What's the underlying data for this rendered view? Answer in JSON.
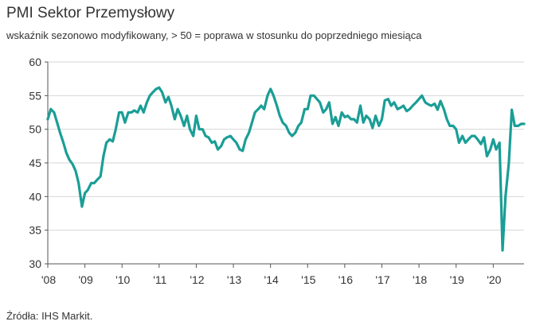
{
  "chart_data": {
    "type": "line",
    "title": "PMI Sektor Przemysłowy",
    "subtitle": "wskaźnik sezonowo modyfikowany, > 50 = poprawa w stosunku do poprzedniego miesiąca",
    "source": "Źródła: IHS Markit.",
    "xlabel": "",
    "ylabel": "",
    "ylim": [
      30,
      60
    ],
    "yticks": [
      30,
      35,
      40,
      45,
      50,
      55,
      60
    ],
    "xlim": [
      2008.0,
      2020.83
    ],
    "xticks": [
      {
        "value": 2008,
        "label": "'08"
      },
      {
        "value": 2009,
        "label": "'09"
      },
      {
        "value": 2010,
        "label": "'10"
      },
      {
        "value": 2011,
        "label": "'11"
      },
      {
        "value": 2012,
        "label": "'12"
      },
      {
        "value": 2013,
        "label": "'13"
      },
      {
        "value": 2014,
        "label": "'14"
      },
      {
        "value": 2015,
        "label": "'15"
      },
      {
        "value": 2016,
        "label": "'16"
      },
      {
        "value": 2017,
        "label": "'17"
      },
      {
        "value": 2018,
        "label": "'18"
      },
      {
        "value": 2019,
        "label": "'19"
      },
      {
        "value": 2020,
        "label": "'20"
      }
    ],
    "grid": "horizontal",
    "line_color": "#1a9e96",
    "grid_color": "#d6d6d6",
    "series": [
      {
        "x": [
          2008.0,
          2008.08,
          2008.17,
          2008.25,
          2008.33,
          2008.42,
          2008.5,
          2008.58,
          2008.67,
          2008.75,
          2008.83,
          2008.92,
          2009.0,
          2009.08,
          2009.17,
          2009.25,
          2009.33,
          2009.42,
          2009.5,
          2009.58,
          2009.67,
          2009.75,
          2009.83,
          2009.92,
          2010.0,
          2010.08,
          2010.17,
          2010.25,
          2010.33,
          2010.42,
          2010.5,
          2010.58,
          2010.67,
          2010.75,
          2010.83,
          2010.92,
          2011.0,
          2011.08,
          2011.17,
          2011.25,
          2011.33,
          2011.42,
          2011.5,
          2011.58,
          2011.67,
          2011.75,
          2011.83,
          2011.92,
          2012.0,
          2012.08,
          2012.17,
          2012.25,
          2012.33,
          2012.42,
          2012.5,
          2012.58,
          2012.67,
          2012.75,
          2012.83,
          2012.92,
          2013.0,
          2013.08,
          2013.17,
          2013.25,
          2013.33,
          2013.42,
          2013.5,
          2013.58,
          2013.67,
          2013.75,
          2013.83,
          2013.92,
          2014.0,
          2014.08,
          2014.17,
          2014.25,
          2014.33,
          2014.42,
          2014.5,
          2014.58,
          2014.67,
          2014.75,
          2014.83,
          2014.92,
          2015.0,
          2015.08,
          2015.17,
          2015.25,
          2015.33,
          2015.42,
          2015.5,
          2015.58,
          2015.67,
          2015.75,
          2015.83,
          2015.92,
          2016.0,
          2016.08,
          2016.17,
          2016.25,
          2016.33,
          2016.42,
          2016.5,
          2016.58,
          2016.67,
          2016.75,
          2016.83,
          2016.92,
          2017.0,
          2017.08,
          2017.17,
          2017.25,
          2017.33,
          2017.42,
          2017.5,
          2017.58,
          2017.67,
          2017.75,
          2017.83,
          2017.92,
          2018.0,
          2018.08,
          2018.17,
          2018.25,
          2018.33,
          2018.42,
          2018.5,
          2018.58,
          2018.67,
          2018.75,
          2018.83,
          2018.92,
          2019.0,
          2019.08,
          2019.17,
          2019.25,
          2019.33,
          2019.42,
          2019.5,
          2019.58,
          2019.67,
          2019.75,
          2019.83,
          2019.92,
          2020.0,
          2020.08,
          2020.17,
          2020.25,
          2020.33,
          2020.42,
          2020.5,
          2020.58,
          2020.67,
          2020.75,
          2020.83
        ],
        "y": [
          51.5,
          53.0,
          52.5,
          51.0,
          49.5,
          48.0,
          46.5,
          45.5,
          44.8,
          43.8,
          42.0,
          38.5,
          40.5,
          41.0,
          42.0,
          42.0,
          42.5,
          43.0,
          46.0,
          48.0,
          48.5,
          48.2,
          50.0,
          52.5,
          52.5,
          51.0,
          52.5,
          52.5,
          52.8,
          52.5,
          53.5,
          52.5,
          54.0,
          55.0,
          55.5,
          56.0,
          56.2,
          55.5,
          54.0,
          54.8,
          53.5,
          51.5,
          53.0,
          52.0,
          50.5,
          52.0,
          50.0,
          49.0,
          52.0,
          50.0,
          50.0,
          49.0,
          48.8,
          48.0,
          48.2,
          47.0,
          47.5,
          48.5,
          48.8,
          49.0,
          48.5,
          48.0,
          47.0,
          46.8,
          48.5,
          49.5,
          51.0,
          52.5,
          53.0,
          53.5,
          53.0,
          55.0,
          56.0,
          55.0,
          53.5,
          52.0,
          51.0,
          50.5,
          49.5,
          49.0,
          49.5,
          50.5,
          51.0,
          53.0,
          53.0,
          55.0,
          55.0,
          54.5,
          54.0,
          52.5,
          53.0,
          54.0,
          50.8,
          51.8,
          50.5,
          52.5,
          51.8,
          52.0,
          51.5,
          51.5,
          51.0,
          53.5,
          51.0,
          52.0,
          51.5,
          50.2,
          52.0,
          50.5,
          51.5,
          54.3,
          54.5,
          53.5,
          54.0,
          53.0,
          53.2,
          53.5,
          52.7,
          53.0,
          53.5,
          54.0,
          54.5,
          55.0,
          54.0,
          53.7,
          53.5,
          53.8,
          52.9,
          54.2,
          53.0,
          51.5,
          50.5,
          50.5,
          50.0,
          48.0,
          49.0,
          48.0,
          48.5,
          49.0,
          49.0,
          48.5,
          47.8,
          48.8,
          46.0,
          47.0,
          48.5,
          47.0,
          48.0,
          32.0,
          40.0,
          45.0,
          52.9,
          50.5,
          50.5,
          50.8,
          50.8
        ]
      }
    ]
  }
}
